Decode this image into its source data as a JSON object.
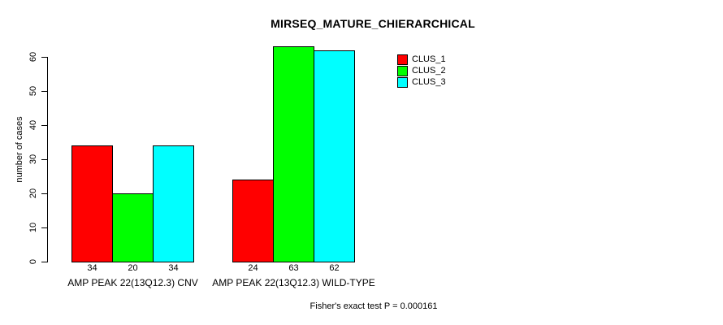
{
  "chart_data": {
    "type": "bar",
    "title": "MIRSEQ_MATURE_CHIERARCHICAL",
    "xlabel": "",
    "ylabel": "number of cases",
    "ylim": [
      0,
      63
    ],
    "yticks": [
      0,
      10,
      20,
      30,
      40,
      50,
      60
    ],
    "categories": [
      "AMP PEAK 22(13Q12.3) CNV",
      "AMP PEAK 22(13Q12.3) WILD-TYPE"
    ],
    "series": [
      {
        "name": "CLUS_1",
        "color": "#ff0000",
        "values": [
          34,
          24
        ]
      },
      {
        "name": "CLUS_2",
        "color": "#00ff00",
        "values": [
          20,
          63
        ]
      },
      {
        "name": "CLUS_3",
        "color": "#00ffff",
        "values": [
          34,
          62
        ]
      }
    ],
    "bar_value_labels_shown": true,
    "legend_position": "top-right",
    "grid": false,
    "annotation": "Fisher's exact test P = 0.000161"
  }
}
